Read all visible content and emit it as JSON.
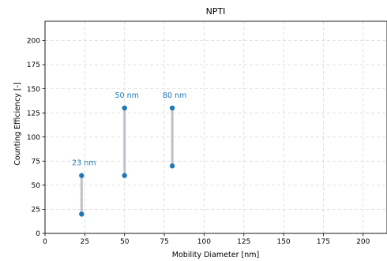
{
  "chart_data": {
    "type": "scatter",
    "title": "NPTI",
    "xlabel": "Mobility Diameter [nm]",
    "ylabel": "Counting Efficiency [-]",
    "xlim": [
      0,
      215
    ],
    "ylim": [
      0,
      220
    ],
    "xticks": [
      0,
      25,
      50,
      75,
      100,
      125,
      150,
      175,
      200
    ],
    "yticks": [
      0,
      25,
      50,
      75,
      100,
      125,
      150,
      175,
      200
    ],
    "grid": true,
    "ranges": [
      {
        "x": 23,
        "low": 20,
        "high": 60,
        "label": "23 nm"
      },
      {
        "x": 50,
        "low": 60,
        "high": 130,
        "label": "50 nm"
      },
      {
        "x": 80,
        "low": 70,
        "high": 130,
        "label": "80 nm"
      }
    ],
    "colors": {
      "points": "#1f77b4",
      "range_line": "#c0c0c8",
      "labels": "#1f77b4"
    }
  }
}
